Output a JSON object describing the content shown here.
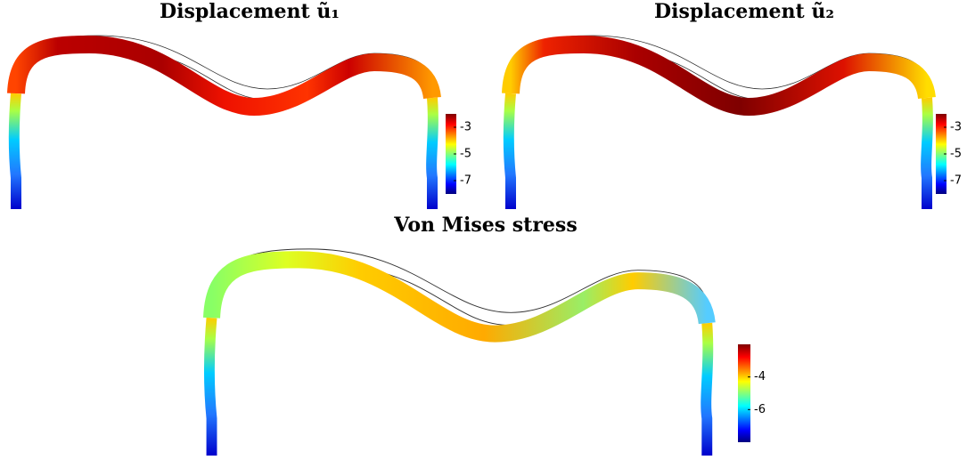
{
  "panels": [
    {
      "title": "Displacement ũ₁",
      "colorbar": {
        "lim": [
          -8,
          -2
        ],
        "ticks": [
          -3,
          -5,
          -7
        ]
      }
    },
    {
      "title": "Displacement ũ₂",
      "colorbar": {
        "lim": [
          -8,
          -2
        ],
        "ticks": [
          -3,
          -5,
          -7
        ]
      }
    },
    {
      "title": "Von Mises stress",
      "colorbar": {
        "lim": [
          -8,
          -2
        ],
        "ticks": [
          -4,
          -6
        ]
      }
    }
  ]
}
